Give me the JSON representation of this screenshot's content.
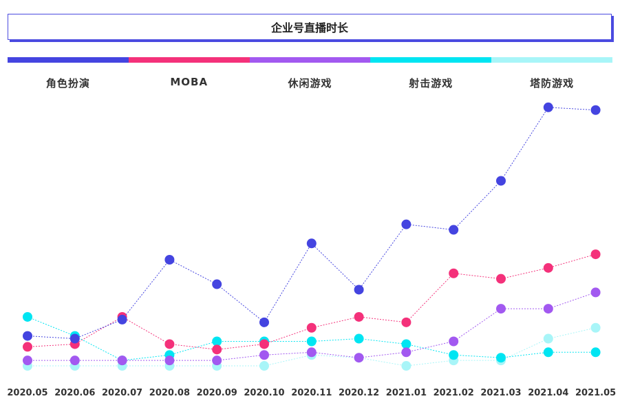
{
  "chart_data": {
    "type": "line",
    "title": "企业号直播时长",
    "categories": [
      "2020.05",
      "2020.06",
      "2020.07",
      "2020.08",
      "2020.09",
      "2020.10",
      "2020.11",
      "2020.12",
      "2021.01",
      "2021.02",
      "2021.03",
      "2021.04",
      "2021.05"
    ],
    "series": [
      {
        "name": "角色扮演",
        "color": "#4444e0",
        "values": [
          12,
          11,
          18,
          40,
          31,
          17,
          46,
          29,
          53,
          51,
          69,
          96,
          95
        ]
      },
      {
        "name": "MOBA",
        "color": "#f4317a",
        "values": [
          8,
          9,
          19,
          9,
          7,
          9,
          15,
          19,
          17,
          35,
          33,
          37,
          42
        ]
      },
      {
        "name": "休闲游戏",
        "color": "#a259f0",
        "values": [
          3,
          3,
          3,
          3,
          3,
          5,
          6,
          4,
          6,
          10,
          22,
          22,
          28
        ]
      },
      {
        "name": "射击游戏",
        "color": "#00e5f2",
        "values": [
          19,
          12,
          3,
          5,
          10,
          10,
          10,
          11,
          9,
          5,
          4,
          6,
          6
        ]
      },
      {
        "name": "塔防游戏",
        "color": "#a8f5f8",
        "values": [
          1,
          1,
          1,
          1,
          1,
          1,
          5,
          4,
          1,
          3,
          3,
          11,
          15
        ]
      }
    ],
    "ylim": [
      0,
      100
    ],
    "grid": false,
    "legend_position": "top"
  }
}
